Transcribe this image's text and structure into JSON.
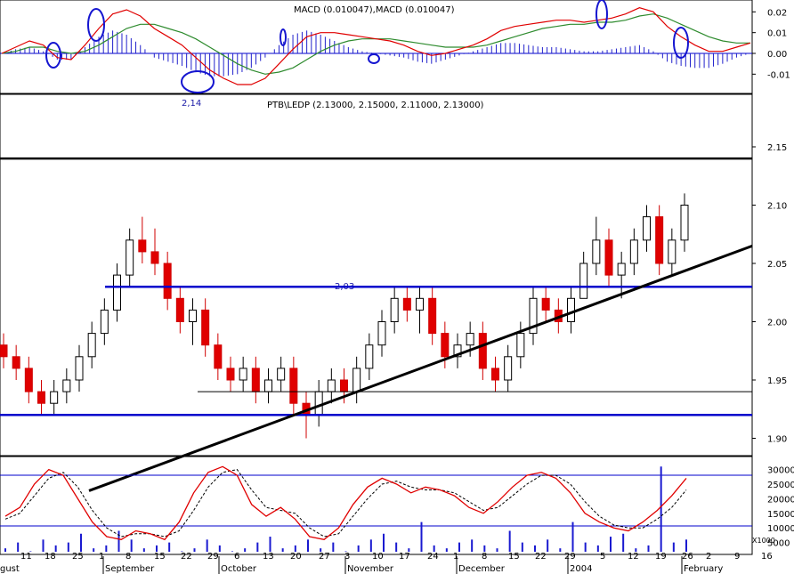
{
  "chart_data": [
    {
      "panel": "macd",
      "type": "line",
      "title": "MACD (0.010047),MACD (0.010047)",
      "ylim": [
        -0.018,
        0.024
      ],
      "y_ticks": [
        "0.02",
        "0.01",
        "0.00",
        "-0.01"
      ],
      "y_tick_values": [
        0.02,
        0.01,
        0.0,
        -0.01
      ],
      "annotations": [
        "2,14"
      ],
      "series": [
        {
          "role": "macd",
          "color": "#e00000",
          "values": [
            0.0,
            0.003,
            0.006,
            0.004,
            -0.002,
            -0.003,
            0.004,
            0.012,
            0.019,
            0.021,
            0.018,
            0.012,
            0.008,
            0.004,
            -0.002,
            -0.008,
            -0.012,
            -0.015,
            -0.015,
            -0.012,
            -0.005,
            0.002,
            0.008,
            0.01,
            0.01,
            0.009,
            0.008,
            0.007,
            0.006,
            0.004,
            0.001,
            -0.001,
            0.0,
            0.002,
            0.004,
            0.007,
            0.011,
            0.013,
            0.014,
            0.015,
            0.016,
            0.016,
            0.015,
            0.016,
            0.017,
            0.019,
            0.022,
            0.02,
            0.013,
            0.008,
            0.004,
            0.001,
            0.001,
            0.003,
            0.005
          ]
        },
        {
          "role": "signal",
          "color": "#2e8b2e",
          "values": [
            0.0,
            0.001,
            0.003,
            0.003,
            0.001,
            0.0,
            0.001,
            0.004,
            0.008,
            0.012,
            0.014,
            0.014,
            0.012,
            0.01,
            0.007,
            0.003,
            -0.001,
            -0.005,
            -0.008,
            -0.01,
            -0.009,
            -0.007,
            -0.003,
            0.001,
            0.004,
            0.006,
            0.007,
            0.007,
            0.007,
            0.006,
            0.005,
            0.004,
            0.003,
            0.003,
            0.003,
            0.004,
            0.006,
            0.008,
            0.01,
            0.012,
            0.013,
            0.014,
            0.014,
            0.015,
            0.015,
            0.016,
            0.018,
            0.019,
            0.017,
            0.014,
            0.011,
            0.008,
            0.006,
            0.005,
            0.005
          ]
        },
        {
          "role": "histogram",
          "color": "#2222cc",
          "values": [
            0.0,
            0.002,
            0.003,
            0.001,
            -0.003,
            -0.003,
            0.003,
            0.008,
            0.011,
            0.009,
            0.004,
            -0.002,
            -0.004,
            -0.006,
            -0.009,
            -0.011,
            -0.011,
            -0.01,
            -0.007,
            -0.002,
            0.004,
            0.009,
            0.011,
            0.009,
            0.006,
            0.003,
            0.001,
            0.0,
            -0.001,
            -0.002,
            -0.004,
            -0.005,
            -0.003,
            -0.001,
            0.001,
            0.003,
            0.005,
            0.005,
            0.004,
            0.003,
            0.003,
            0.002,
            0.001,
            0.001,
            0.002,
            0.003,
            0.004,
            0.001,
            -0.004,
            -0.006,
            -0.007,
            -0.007,
            -0.005,
            -0.002,
            0.0
          ]
        }
      ]
    },
    {
      "panel": "price",
      "type": "candlestick",
      "title": "PTB\\LEDP (2.13000, 2.15000, 2.11000, 2.13000)",
      "ylim": [
        1.875,
        2.175
      ],
      "y_ticks": [
        "2.15",
        "2.10",
        "2.05",
        "2.00",
        "1.95",
        "1.90"
      ],
      "y_tick_values": [
        2.15,
        2.1,
        2.05,
        2.0,
        1.95,
        1.9
      ],
      "annotations": [
        "2,03"
      ],
      "candles": [
        [
          1.98,
          1.99,
          1.96,
          1.97
        ],
        [
          1.97,
          1.98,
          1.95,
          1.96
        ],
        [
          1.96,
          1.97,
          1.93,
          1.94
        ],
        [
          1.94,
          1.95,
          1.92,
          1.93
        ],
        [
          1.93,
          1.95,
          1.92,
          1.94
        ],
        [
          1.94,
          1.96,
          1.93,
          1.95
        ],
        [
          1.95,
          1.98,
          1.94,
          1.97
        ],
        [
          1.97,
          2.0,
          1.96,
          1.99
        ],
        [
          1.99,
          2.02,
          1.98,
          2.01
        ],
        [
          2.01,
          2.05,
          2.0,
          2.04
        ],
        [
          2.04,
          2.08,
          2.03,
          2.07
        ],
        [
          2.07,
          2.09,
          2.05,
          2.06
        ],
        [
          2.06,
          2.08,
          2.04,
          2.05
        ],
        [
          2.05,
          2.06,
          2.01,
          2.02
        ],
        [
          2.02,
          2.03,
          1.99,
          2.0
        ],
        [
          2.0,
          2.02,
          1.98,
          2.01
        ],
        [
          2.01,
          2.02,
          1.97,
          1.98
        ],
        [
          1.98,
          1.99,
          1.95,
          1.96
        ],
        [
          1.96,
          1.97,
          1.94,
          1.95
        ],
        [
          1.95,
          1.97,
          1.94,
          1.96
        ],
        [
          1.96,
          1.97,
          1.93,
          1.94
        ],
        [
          1.94,
          1.96,
          1.93,
          1.95
        ],
        [
          1.95,
          1.97,
          1.94,
          1.96
        ],
        [
          1.96,
          1.97,
          1.92,
          1.93
        ],
        [
          1.93,
          1.94,
          1.9,
          1.92
        ],
        [
          1.92,
          1.95,
          1.91,
          1.94
        ],
        [
          1.94,
          1.96,
          1.93,
          1.95
        ],
        [
          1.95,
          1.96,
          1.93,
          1.94
        ],
        [
          1.94,
          1.97,
          1.93,
          1.96
        ],
        [
          1.96,
          1.99,
          1.95,
          1.98
        ],
        [
          1.98,
          2.01,
          1.97,
          2.0
        ],
        [
          2.0,
          2.03,
          1.99,
          2.02
        ],
        [
          2.02,
          2.03,
          2.0,
          2.01
        ],
        [
          2.01,
          2.03,
          1.99,
          2.02
        ],
        [
          2.02,
          2.03,
          1.98,
          1.99
        ],
        [
          1.99,
          2.0,
          1.96,
          1.97
        ],
        [
          1.97,
          1.99,
          1.96,
          1.98
        ],
        [
          1.98,
          2.0,
          1.97,
          1.99
        ],
        [
          1.99,
          2.0,
          1.95,
          1.96
        ],
        [
          1.96,
          1.97,
          1.94,
          1.95
        ],
        [
          1.95,
          1.98,
          1.94,
          1.97
        ],
        [
          1.97,
          2.0,
          1.96,
          1.99
        ],
        [
          1.99,
          2.03,
          1.98,
          2.02
        ],
        [
          2.02,
          2.03,
          2.0,
          2.01
        ],
        [
          2.01,
          2.02,
          1.99,
          2.0
        ],
        [
          2.0,
          2.03,
          1.99,
          2.02
        ],
        [
          2.02,
          2.06,
          2.02,
          2.05
        ],
        [
          2.05,
          2.09,
          2.04,
          2.07
        ],
        [
          2.07,
          2.08,
          2.03,
          2.04
        ],
        [
          2.04,
          2.06,
          2.02,
          2.05
        ],
        [
          2.05,
          2.08,
          2.04,
          2.07
        ],
        [
          2.07,
          2.1,
          2.06,
          2.09
        ],
        [
          2.09,
          2.1,
          2.04,
          2.05
        ],
        [
          2.05,
          2.08,
          2.04,
          2.07
        ],
        [
          2.07,
          2.11,
          2.06,
          2.1
        ]
      ],
      "horizontal_levels": [
        {
          "value": 2.14,
          "color": "#000000"
        },
        {
          "value": 2.03,
          "color": "#0000cc"
        },
        {
          "value": 1.92,
          "color": "#0000cc"
        },
        {
          "value": 1.94,
          "color": "#000000"
        }
      ],
      "trendline": {
        "from": [
          0,
          1.855
        ],
        "to": [
          63,
          2.065
        ],
        "color": "#000000"
      }
    },
    {
      "panel": "stochastic_volume",
      "type": "bar",
      "ylim": [
        0,
        32000
      ],
      "y_ticks": [
        "30000",
        "25000",
        "20000",
        "15000",
        "10000",
        "5000",
        "X1000"
      ],
      "y_tick_values": [
        30000,
        25000,
        20000,
        15000,
        10000,
        5000,
        1000
      ],
      "volume": [
        3000,
        5000,
        2000,
        6000,
        4000,
        5000,
        8000,
        3000,
        4000,
        9000,
        6000,
        3000,
        4000,
        5000,
        2000,
        3000,
        6000,
        4000,
        2000,
        3000,
        5000,
        7000,
        3000,
        4000,
        6000,
        3000,
        5000,
        2000,
        4000,
        6000,
        8000,
        5000,
        3000,
        12000,
        4000,
        3000,
        5000,
        6000,
        4000,
        3000,
        9000,
        5000,
        4000,
        6000,
        3000,
        12000,
        5000,
        4000,
        7000,
        8000,
        3000,
        4000,
        31000,
        5000,
        6000
      ],
      "stoch_k": [
        14000,
        17000,
        25000,
        30000,
        28000,
        20000,
        12000,
        7000,
        6000,
        9000,
        8000,
        6000,
        12000,
        22000,
        29000,
        31000,
        28000,
        18000,
        14000,
        17000,
        13000,
        7000,
        6000,
        10000,
        18000,
        24000,
        27000,
        25000,
        22000,
        24000,
        23000,
        21000,
        17000,
        15000,
        19000,
        24000,
        28000,
        29000,
        27000,
        22000,
        15000,
        12000,
        10000,
        9000,
        12000,
        16000,
        21000,
        27000
      ],
      "stoch_d": [
        13000,
        15000,
        21000,
        27000,
        29000,
        24000,
        16000,
        10000,
        7000,
        8000,
        8000,
        7000,
        9000,
        16000,
        24000,
        29000,
        30000,
        23000,
        17000,
        16000,
        15000,
        10000,
        7000,
        8000,
        14000,
        20000,
        25000,
        26000,
        24000,
        23000,
        23000,
        22000,
        19000,
        16000,
        17000,
        21000,
        25000,
        28000,
        28000,
        25000,
        19000,
        14000,
        11000,
        10000,
        10000,
        13000,
        17000,
        23000
      ],
      "x_labels": [
        "gust",
        "11",
        "18",
        "25",
        "1",
        "September",
        "8",
        "15",
        "22",
        "29",
        "October",
        "6",
        "13",
        "20",
        "27",
        "3",
        "November",
        "10",
        "17",
        "24",
        "1",
        "December",
        "8",
        "15",
        "22",
        "29",
        "2004",
        "5",
        "12",
        "19",
        "26",
        "2",
        "February",
        "9",
        "16"
      ]
    }
  ]
}
